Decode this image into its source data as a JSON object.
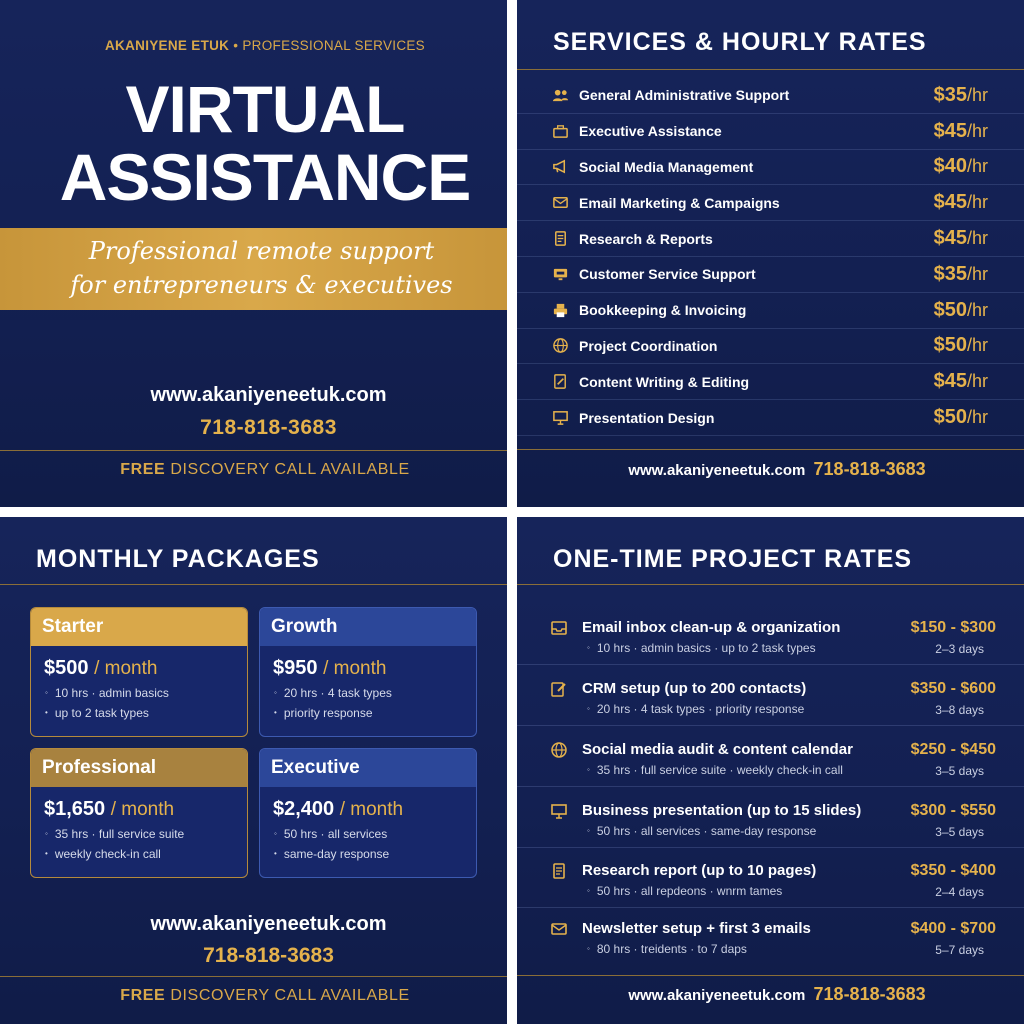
{
  "cover": {
    "kicker_name": "AKANIYENE ETUK",
    "kicker_sep": "•",
    "kicker_tag": "PROFESSIONAL SERVICES",
    "title_line1": "VIRTUAL",
    "title_line2": "ASSISTANCE",
    "tagline_line1": "Professional remote support",
    "tagline_line2": "for entrepreneurs & executives",
    "website": "www.akaniyeneetuk.com",
    "phone": "718-818-3683",
    "footer_bold": "FREE",
    "footer_rest": "DISCOVERY CALL AVAILABLE"
  },
  "services": {
    "title": "SERVICES & HOURLY RATES",
    "items": [
      {
        "icon": "people-icon",
        "name": "General Administrative Support",
        "rate": "$35",
        "unit": "/hr"
      },
      {
        "icon": "briefcase-icon",
        "name": "Executive Assistance",
        "rate": "$45",
        "unit": "/hr"
      },
      {
        "icon": "megaphone-icon",
        "name": "Social Media Management",
        "rate": "$40",
        "unit": "/hr"
      },
      {
        "icon": "email-icon",
        "name": "Email Marketing & Campaigns",
        "rate": "$45",
        "unit": "/hr"
      },
      {
        "icon": "document-icon",
        "name": "Research & Reports",
        "rate": "$45",
        "unit": "/hr"
      },
      {
        "icon": "monitor-icon",
        "name": "Customer Service Support",
        "rate": "$35",
        "unit": "/hr"
      },
      {
        "icon": "printer-icon",
        "name": "Bookkeeping & Invoicing",
        "rate": "$50",
        "unit": "/hr"
      },
      {
        "icon": "globe-icon",
        "name": "Project Coordination",
        "rate": "$50",
        "unit": "/hr"
      },
      {
        "icon": "pencil-icon",
        "name": "Content Writing & Editing",
        "rate": "$45",
        "unit": "/hr"
      },
      {
        "icon": "presentation-icon",
        "name": "Presentation Design",
        "rate": "$50",
        "unit": "/hr"
      }
    ],
    "website": "www.akaniyeneetuk.com",
    "phone": "718-818-3683"
  },
  "packages": {
    "title": "MONTHLY PACKAGES",
    "items": [
      {
        "name": "Starter",
        "price": "$500",
        "per": "/ month",
        "line1": "10 hrs · admin basics",
        "line2": "up to 2 task types"
      },
      {
        "name": "Growth",
        "price": "$950",
        "per": "/ month",
        "line1": "20 hrs · 4 task types",
        "line2": "priority response"
      },
      {
        "name": "Professional",
        "price": "$1,650",
        "per": "/ month",
        "line1": "35 hrs · full service suite",
        "line2": "weekly check-in call"
      },
      {
        "name": "Executive",
        "price": "$2,400",
        "per": "/ month",
        "line1": "50 hrs · all services",
        "line2": "same-day response"
      }
    ],
    "bullet": "◦",
    "bullet2": "•",
    "website": "www.akaniyeneetuk.com",
    "phone": "718-818-3683",
    "footer_bold": "FREE",
    "footer_rest": "DISCOVERY CALL AVAILABLE"
  },
  "projects": {
    "title": "ONE-TIME PROJECT RATES",
    "items": [
      {
        "icon": "inbox-icon",
        "name": "Email inbox clean-up & organization",
        "detail": "10 hrs · admin basics · up to 2 task types",
        "price": "$150 - $300",
        "days": "2–3 days"
      },
      {
        "icon": "edit-icon",
        "name": "CRM setup (up to 200 contacts)",
        "detail": "20 hrs · 4 task types · priority response",
        "price": "$350 - $600",
        "days": "3–8 days"
      },
      {
        "icon": "globe-icon",
        "name": "Social media audit & content calendar",
        "detail": "35 hrs · full service suite · weekly check-in call",
        "price": "$250 - $450",
        "days": "3–5 days"
      },
      {
        "icon": "presentation-icon",
        "name": "Business presentation (up to 15 slides)",
        "detail": "50 hrs · all services · same-day response",
        "price": "$300 - $550",
        "days": "3–5 days"
      },
      {
        "icon": "document-icon",
        "name": "Research report (up to 10 pages)",
        "detail": "50 hrs · all repdeons · wnrm tames",
        "price": "$350 - $400",
        "days": "2–4 days"
      },
      {
        "icon": "email-icon",
        "name": "Newsletter setup + first 3 emails",
        "detail": "80 hrs · treidents · to 7 daps",
        "price": "$400 - $700",
        "days": "5–7 days"
      }
    ],
    "bullet": "◦",
    "website": "www.akaniyeneetuk.com",
    "phone": "718-818-3683"
  }
}
